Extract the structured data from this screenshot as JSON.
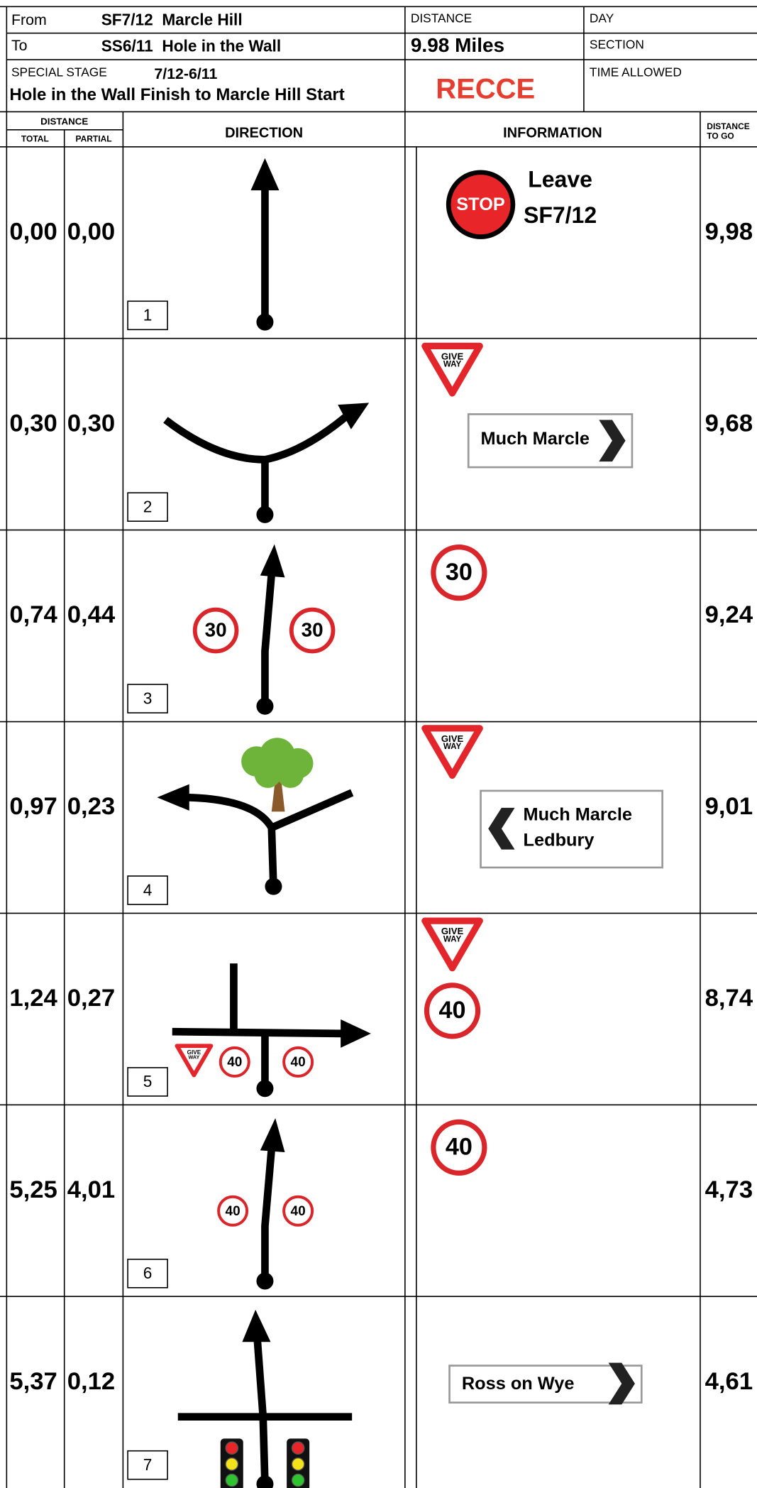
{
  "header": {
    "from_label": "From",
    "from_value": "SF7/12  Marcle Hill",
    "to_label": "To",
    "to_value": "SS6/11  Hole in the Wall",
    "special_stage_label": "SPECIAL STAGE",
    "stage_code": "7/12-6/11",
    "stage_name": "Hole in the Wall Finish to Marcle Hill Start",
    "distance_label": "DISTANCE",
    "distance_value": "9.98 Miles",
    "recce": "RECCE",
    "day_label": "DAY",
    "section_label": "SECTION",
    "time_allowed_label": "TIME ALLOWED"
  },
  "columns": {
    "distance": "DISTANCE",
    "total": "TOTAL",
    "partial": "PARTIAL",
    "direction": "DIRECTION",
    "information": "INFORMATION",
    "distance_to_go": [
      "DISTANCE",
      "TO GO"
    ]
  },
  "give_way": [
    "GIVE",
    "WAY"
  ],
  "rows": [
    {
      "number": "1",
      "total": "0,00",
      "partial": "0,00",
      "to_go": "9,98",
      "info": {
        "stop": "STOP",
        "text": [
          "Leave",
          "SF7/12"
        ]
      }
    },
    {
      "number": "2",
      "total": "0,30",
      "partial": "0,30",
      "to_go": "9,68",
      "info": {
        "board": [
          "Much Marcle"
        ]
      }
    },
    {
      "number": "3",
      "total": "0,74",
      "partial": "0,44",
      "to_go": "9,24",
      "direction_signs": [
        "30",
        "30"
      ],
      "info": {
        "speed": "30"
      }
    },
    {
      "number": "4",
      "total": "0,97",
      "partial": "0,23",
      "to_go": "9,01",
      "info": {
        "board": [
          "Much Marcle",
          "Ledbury"
        ]
      }
    },
    {
      "number": "5",
      "total": "1,24",
      "partial": "0,27",
      "to_go": "8,74",
      "direction_signs": [
        "40",
        "40"
      ],
      "info": {
        "speed": "40"
      }
    },
    {
      "number": "6",
      "total": "5,25",
      "partial": "4,01",
      "to_go": "4,73",
      "direction_signs": [
        "40",
        "40"
      ],
      "info": {
        "speed": "40"
      }
    },
    {
      "number": "7",
      "total": "5,37",
      "partial": "0,12",
      "to_go": "4,61",
      "info": {
        "board": [
          "Ross on Wye"
        ]
      }
    }
  ]
}
